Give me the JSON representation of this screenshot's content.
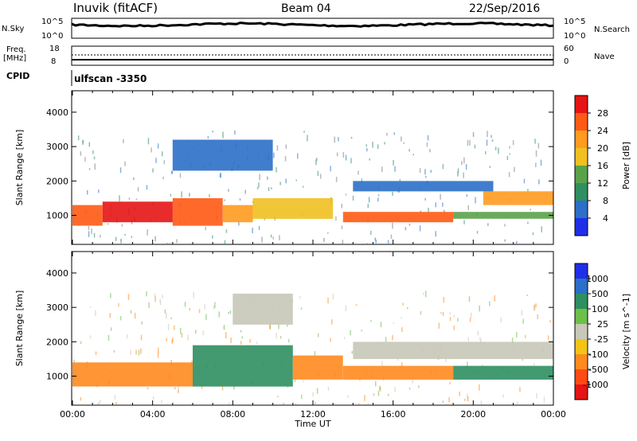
{
  "header": {
    "station": "Inuvik (fitACF)",
    "beam": "Beam 04",
    "date": "22/Sep/2016"
  },
  "top_panel": {
    "left_label": "N.Sky",
    "left_ticks": [
      "10^5",
      "10^0"
    ],
    "right_label": "N.Search",
    "right_ticks": [
      "10^5",
      "10^0"
    ]
  },
  "freq_panel": {
    "left_label_line1": "Freq.",
    "left_label_line2": "[MHz]",
    "left_ticks": [
      "18",
      "8"
    ],
    "right_label": "Nave",
    "right_ticks": [
      "60",
      "0"
    ]
  },
  "cpid": {
    "label": "CPID",
    "value": "ulfscan  -3350"
  },
  "colors": {
    "power_scale": [
      "#1f2fe8",
      "#2b6fc8",
      "#2f8f60",
      "#5aa24a",
      "#f0c020",
      "#ff9b1f",
      "#ff5a14",
      "#e61414"
    ],
    "velocity_scale": [
      "#1f2fe8",
      "#2b6fc8",
      "#2f8f60",
      "#6cc04a",
      "#c8c8b8",
      "#f2c418",
      "#ff8a1e",
      "#ff4a14",
      "#e61414"
    ]
  },
  "chart_data": [
    {
      "type": "heatmap",
      "name": "power",
      "ylabel": "Slant Range [km]",
      "yticks": [
        "4000",
        "3000",
        "2000",
        "1000"
      ],
      "ylim": [
        180,
        4600
      ],
      "xticks": [
        "00:00",
        "04:00",
        "08:00",
        "12:00",
        "16:00",
        "20:00",
        "00:00"
      ],
      "xlim_hours": [
        0,
        24
      ],
      "colorbar_label": "Power [dB]",
      "colorbar_ticks": [
        "28",
        "24",
        "20",
        "16",
        "12",
        "8",
        "4"
      ],
      "colorbar_range": [
        0,
        32
      ],
      "bands": [
        {
          "t0": 0,
          "t1": 1.5,
          "r0": 700,
          "r1": 1300,
          "value": 26
        },
        {
          "t0": 1.5,
          "t1": 5,
          "r0": 800,
          "r1": 1400,
          "value": 28
        },
        {
          "t0": 5,
          "t1": 7.5,
          "r0": 700,
          "r1": 1500,
          "value": 26
        },
        {
          "t0": 7.5,
          "t1": 9,
          "r0": 800,
          "r1": 1300,
          "value": 22
        },
        {
          "t0": 9,
          "t1": 13,
          "r0": 900,
          "r1": 1500,
          "value": 16
        },
        {
          "t0": 13.5,
          "t1": 19,
          "r0": 800,
          "r1": 1100,
          "value": 26
        },
        {
          "t0": 19,
          "t1": 24,
          "r0": 900,
          "r1": 1100,
          "value": 14
        },
        {
          "t0": 20.5,
          "t1": 24,
          "r0": 1300,
          "r1": 1700,
          "value": 20
        },
        {
          "t0": 14,
          "t1": 21,
          "r0": 1700,
          "r1": 2000,
          "value": 6
        },
        {
          "t0": 5,
          "t1": 10,
          "r0": 2300,
          "r1": 3200,
          "value": 6
        }
      ]
    },
    {
      "type": "heatmap",
      "name": "velocity",
      "ylabel": "Slant Range [km]",
      "yticks": [
        "4000",
        "3000",
        "2000",
        "1000"
      ],
      "ylim": [
        180,
        4600
      ],
      "xticks": [
        "00:00",
        "04:00",
        "08:00",
        "12:00",
        "16:00",
        "20:00",
        "00:00"
      ],
      "xlabel": "Time UT",
      "xlim_hours": [
        0,
        24
      ],
      "colorbar_label": "Velocity [m s^-1]",
      "colorbar_ticks": [
        "1000",
        "500",
        "100",
        "25",
        "-25",
        "-100",
        "-500",
        "-1000"
      ],
      "bands": [
        {
          "t0": 0,
          "t1": 6,
          "r0": 700,
          "r1": 1400,
          "value": -300
        },
        {
          "t0": 6,
          "t1": 11,
          "r0": 700,
          "r1": 1900,
          "value": 200
        },
        {
          "t0": 11,
          "t1": 13.5,
          "r0": 900,
          "r1": 1600,
          "value": -200
        },
        {
          "t0": 13.5,
          "t1": 19,
          "r0": 900,
          "r1": 1300,
          "value": -300
        },
        {
          "t0": 19,
          "t1": 24,
          "r0": 900,
          "r1": 1300,
          "value": 150
        },
        {
          "t0": 14,
          "t1": 24,
          "r0": 1500,
          "r1": 2000,
          "value": 0
        },
        {
          "t0": 8,
          "t1": 11,
          "r0": 2500,
          "r1": 3400,
          "value": 0
        }
      ]
    }
  ]
}
